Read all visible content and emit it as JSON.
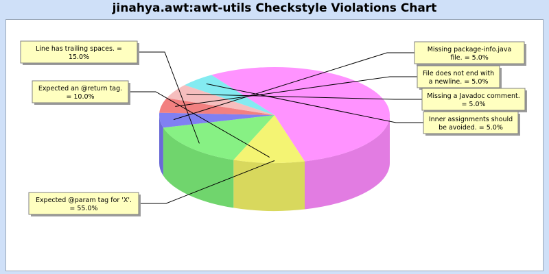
{
  "chart_data": {
    "type": "pie",
    "title": "jinahya.awt:awt-utils Checkstyle Violations Chart",
    "style": "3d",
    "slices": [
      {
        "label": "Expected @param tag for 'X'.",
        "value": 55.0,
        "label_text": "Expected @param tag for 'X'. = 55.0%",
        "color": "#ff80ff"
      },
      {
        "label": "Expected an @return tag.",
        "value": 10.0,
        "label_text": "Expected an @return tag. = 10.0%",
        "color": "#f2f25a"
      },
      {
        "label": "Line has trailing spaces.",
        "value": 15.0,
        "label_text": "Line has trailing spaces. = 15.0%",
        "color": "#72ee6e"
      },
      {
        "label": "Missing package-info.java file.",
        "value": 5.0,
        "label_text": "Missing package-info.java file. = 5.0%",
        "color": "#6a6af0"
      },
      {
        "label": "File does not end with a newline.",
        "value": 5.0,
        "label_text": "File does not end with a newline. = 5.0%",
        "color": "#f06a6a"
      },
      {
        "label": "Missing a Javadoc comment.",
        "value": 5.0,
        "label_text": "Missing a Javadoc comment. = 5.0%",
        "color": "#f5b3b3"
      },
      {
        "label": "Inner assignments should be avoided.",
        "value": 5.0,
        "label_text": "Inner assignments should be avoided. = 5.0%",
        "color": "#6ee8ee"
      }
    ]
  }
}
